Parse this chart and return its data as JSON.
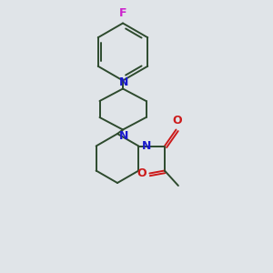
{
  "bg_color": "#e0e4e8",
  "bond_color": "#2d4a2d",
  "N_color": "#1a1acc",
  "O_color": "#cc1a1a",
  "F_color": "#cc22cc",
  "line_width": 1.4,
  "figsize": [
    3.0,
    3.0
  ],
  "dpi": 100,
  "xlim": [
    0,
    10
  ],
  "ylim": [
    0,
    10
  ]
}
